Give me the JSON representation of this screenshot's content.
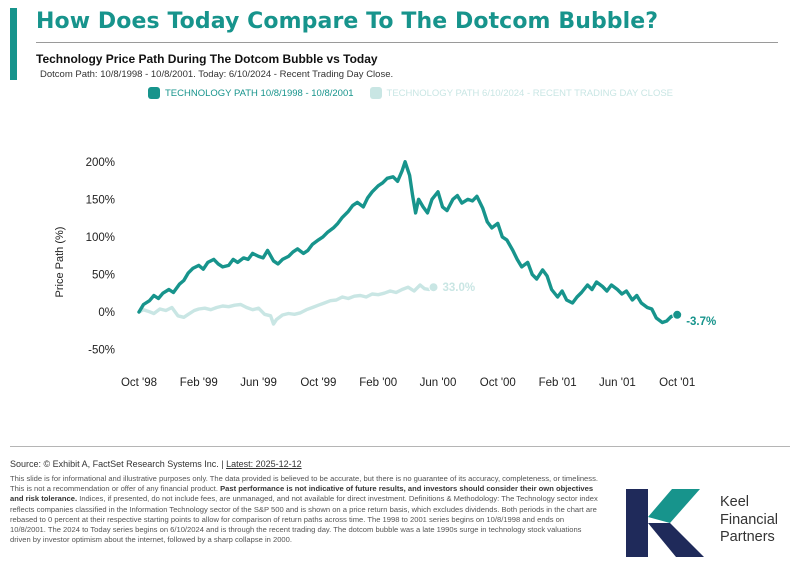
{
  "header": {
    "title": "How Does Today Compare To The Dotcom Bubble?",
    "subtitle": "Technology Price Path During The Dotcom Bubble vs Today",
    "note": "Dotcom Path: 10/8/1998 - 10/8/2001. Today: 6/10/2024 - Recent Trading Day Close."
  },
  "colors": {
    "accent": "#17948c",
    "today": "#c9e6e4",
    "grid": "#e5e5e5"
  },
  "chart_data": {
    "type": "line",
    "title": "Technology Price Path During The Dotcom Bubble vs Today",
    "ylabel": "Price Path (%)",
    "xlabel": "",
    "ylim": [
      -50,
      200
    ],
    "yticks": [
      "200%",
      "150%",
      "100%",
      "50%",
      "0%",
      "-50%"
    ],
    "yticks_values": [
      200,
      150,
      100,
      50,
      0,
      -50
    ],
    "xticks": [
      "Oct '98",
      "Feb '99",
      "Jun '99",
      "Oct '99",
      "Feb '00",
      "Jun '00",
      "Oct '00",
      "Feb '01",
      "Jun '01",
      "Oct '01"
    ],
    "x_unit": "months since Oct '98",
    "grid": false,
    "legend_position": "top",
    "series": [
      {
        "name": "TECHNOLOGY PATH 10/8/1998 - 10/8/2001",
        "color": "#17948c",
        "end_label": "-3.7%",
        "points": [
          [
            0,
            0
          ],
          [
            0.3,
            10
          ],
          [
            0.7,
            15
          ],
          [
            1,
            22
          ],
          [
            1.3,
            18
          ],
          [
            1.6,
            25
          ],
          [
            2,
            30
          ],
          [
            2.3,
            26
          ],
          [
            2.7,
            37
          ],
          [
            3,
            42
          ],
          [
            3.3,
            52
          ],
          [
            3.6,
            58
          ],
          [
            4,
            62
          ],
          [
            4.3,
            57
          ],
          [
            4.6,
            66
          ],
          [
            5,
            70
          ],
          [
            5.3,
            64
          ],
          [
            5.6,
            60
          ],
          [
            6,
            62
          ],
          [
            6.3,
            70
          ],
          [
            6.6,
            66
          ],
          [
            7,
            72
          ],
          [
            7.3,
            70
          ],
          [
            7.6,
            78
          ],
          [
            8,
            74
          ],
          [
            8.3,
            72
          ],
          [
            8.6,
            82
          ],
          [
            9,
            68
          ],
          [
            9.3,
            64
          ],
          [
            9.6,
            70
          ],
          [
            10,
            74
          ],
          [
            10.3,
            80
          ],
          [
            10.6,
            84
          ],
          [
            11,
            78
          ],
          [
            11.3,
            82
          ],
          [
            11.6,
            90
          ],
          [
            12,
            96
          ],
          [
            12.3,
            100
          ],
          [
            12.6,
            106
          ],
          [
            13,
            112
          ],
          [
            13.3,
            118
          ],
          [
            13.6,
            126
          ],
          [
            14,
            134
          ],
          [
            14.3,
            142
          ],
          [
            14.6,
            146
          ],
          [
            15,
            140
          ],
          [
            15.3,
            152
          ],
          [
            15.6,
            160
          ],
          [
            16,
            168
          ],
          [
            16.3,
            172
          ],
          [
            16.6,
            178
          ],
          [
            17,
            180
          ],
          [
            17.3,
            174
          ],
          [
            17.6,
            188
          ],
          [
            17.8,
            200
          ],
          [
            18.1,
            182
          ],
          [
            18.3,
            155
          ],
          [
            18.5,
            132
          ],
          [
            18.7,
            150
          ],
          [
            19,
            140
          ],
          [
            19.3,
            132
          ],
          [
            19.6,
            150
          ],
          [
            20,
            160
          ],
          [
            20.3,
            140
          ],
          [
            20.6,
            135
          ],
          [
            21,
            150
          ],
          [
            21.3,
            155
          ],
          [
            21.6,
            145
          ],
          [
            22,
            150
          ],
          [
            22.3,
            148
          ],
          [
            22.6,
            154
          ],
          [
            23,
            138
          ],
          [
            23.3,
            120
          ],
          [
            23.6,
            112
          ],
          [
            24,
            118
          ],
          [
            24.3,
            100
          ],
          [
            24.6,
            96
          ],
          [
            25,
            82
          ],
          [
            25.3,
            70
          ],
          [
            25.6,
            60
          ],
          [
            26,
            66
          ],
          [
            26.3,
            50
          ],
          [
            26.6,
            44
          ],
          [
            27,
            56
          ],
          [
            27.3,
            48
          ],
          [
            27.6,
            30
          ],
          [
            28,
            20
          ],
          [
            28.3,
            28
          ],
          [
            28.6,
            16
          ],
          [
            29,
            12
          ],
          [
            29.3,
            20
          ],
          [
            29.6,
            26
          ],
          [
            30,
            36
          ],
          [
            30.3,
            30
          ],
          [
            30.6,
            40
          ],
          [
            31,
            34
          ],
          [
            31.3,
            28
          ],
          [
            31.6,
            36
          ],
          [
            32,
            30
          ],
          [
            32.3,
            24
          ],
          [
            32.6,
            28
          ],
          [
            33,
            16
          ],
          [
            33.3,
            22
          ],
          [
            33.6,
            12
          ],
          [
            34,
            6
          ],
          [
            34.3,
            4
          ],
          [
            34.6,
            -8
          ],
          [
            35,
            -14
          ],
          [
            35.3,
            -12
          ],
          [
            35.6,
            -6
          ],
          [
            36,
            -3.7
          ]
        ]
      },
      {
        "name": "TECHNOLOGY PATH 6/10/2024 - RECENT TRADING DAY CLOSE",
        "color": "#c9e6e4",
        "end_label": "33.0%",
        "points": [
          [
            0,
            0
          ],
          [
            0.3,
            3
          ],
          [
            0.6,
            1
          ],
          [
            1,
            -2
          ],
          [
            1.4,
            4
          ],
          [
            1.8,
            2
          ],
          [
            2.2,
            6
          ],
          [
            2.6,
            -5
          ],
          [
            3,
            -7
          ],
          [
            3.3,
            -3
          ],
          [
            3.7,
            2
          ],
          [
            4,
            4
          ],
          [
            4.4,
            5
          ],
          [
            4.8,
            3
          ],
          [
            5.2,
            6
          ],
          [
            5.6,
            8
          ],
          [
            6,
            7
          ],
          [
            6.4,
            9
          ],
          [
            6.8,
            10
          ],
          [
            7.2,
            6
          ],
          [
            7.6,
            3
          ],
          [
            8,
            5
          ],
          [
            8.4,
            -3
          ],
          [
            8.8,
            -5
          ],
          [
            9,
            -16
          ],
          [
            9.2,
            -10
          ],
          [
            9.6,
            -4
          ],
          [
            10,
            -2
          ],
          [
            10.4,
            -3
          ],
          [
            10.8,
            -1
          ],
          [
            11.2,
            3
          ],
          [
            11.6,
            6
          ],
          [
            12,
            9
          ],
          [
            12.4,
            12
          ],
          [
            12.8,
            15
          ],
          [
            13.2,
            16
          ],
          [
            13.6,
            20
          ],
          [
            14,
            18
          ],
          [
            14.4,
            21
          ],
          [
            14.8,
            22
          ],
          [
            15.2,
            20
          ],
          [
            15.6,
            24
          ],
          [
            16,
            23
          ],
          [
            16.4,
            25
          ],
          [
            16.8,
            28
          ],
          [
            17.2,
            26
          ],
          [
            17.6,
            30
          ],
          [
            18,
            33
          ],
          [
            18.4,
            28
          ],
          [
            18.8,
            36
          ],
          [
            19.1,
            31
          ],
          [
            19.4,
            30
          ],
          [
            19.7,
            33
          ]
        ]
      }
    ]
  },
  "footer": {
    "source_prefix": "Source: © Exhibit A, FactSet Research Systems Inc. | ",
    "source_latest": "Latest: 2025-12-12",
    "disclaimer_1": "This slide is for informational and illustrative purposes only. The data provided is believed to be accurate, but there is no guarantee of its accuracy, completeness, or timeliness. This is not a recommendation or offer of any financial product. ",
    "disclaimer_bold": "Past performance is not indicative of future results, and investors should consider their own objectives and risk tolerance.",
    "disclaimer_2": " Indices, if presented, do not include fees, are unmanaged, and not available for direct investment. Definitions & Methodology: The Technology sector index reflects companies classified in the Information Technology sector of the S&P 500 and is shown on a price return basis, which excludes dividends. Both periods in the chart are rebased to 0 percent at their respective starting points to allow for comparison of return paths across time. The 1998 to 2001 series begins on 10/8/1998 and ends on 10/8/2001. The 2024 to Today series begins on 6/10/2024 and is through the recent trading day. The dotcom bubble was a late 1990s surge in technology stock valuations driven by investor optimism about the internet, followed by a sharp collapse in 2000."
  },
  "logo": {
    "line1": "Keel",
    "line2": "Financial",
    "line3": "Partners",
    "icon": "keel-k-logo"
  }
}
